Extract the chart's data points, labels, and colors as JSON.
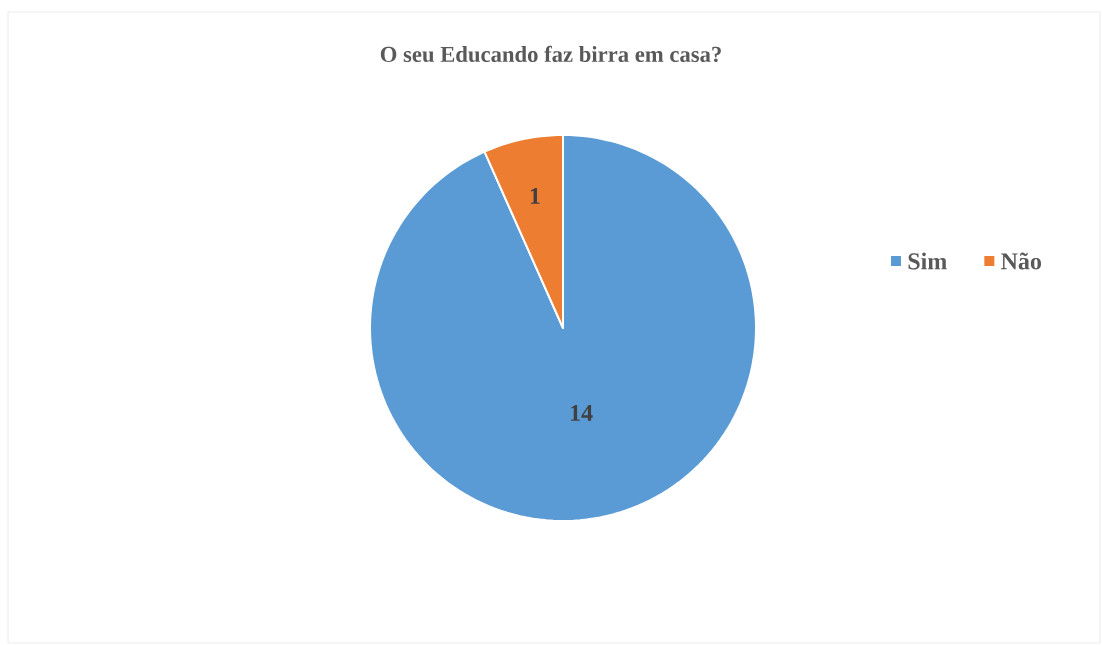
{
  "chart_data": {
    "type": "pie",
    "title": "O seu Educando  faz birra  em casa?",
    "categories": [
      "Sim",
      "Não"
    ],
    "values": [
      14,
      1
    ],
    "colors": [
      "#5b9bd5",
      "#ed7d31"
    ],
    "data_labels": true,
    "legend": "right"
  }
}
